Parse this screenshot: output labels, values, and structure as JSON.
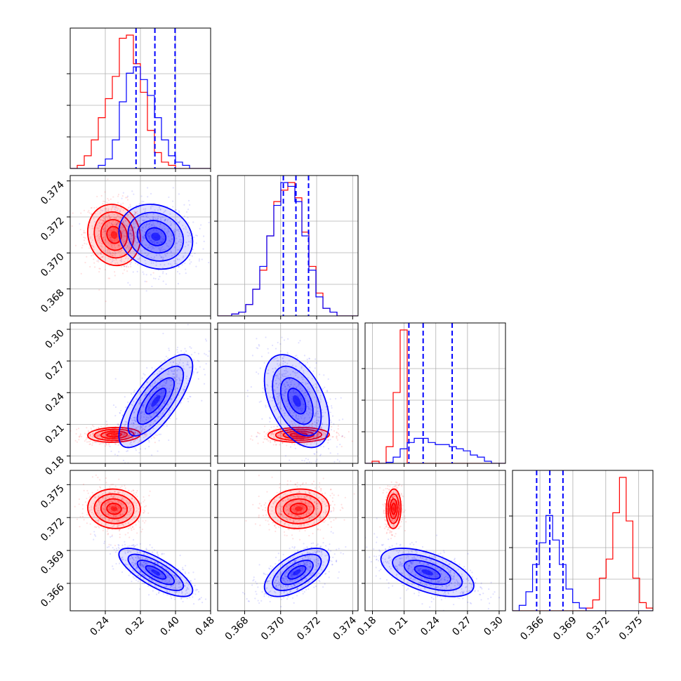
{
  "chart_data": {
    "type": "scatter",
    "title": "",
    "grid": true,
    "colors": {
      "red": "#ff0000",
      "blue": "#0000ff"
    },
    "params": [
      {
        "lim": [
          0.16,
          0.48
        ],
        "ticks": [
          "0.24",
          "0.32",
          "0.40",
          "0.48"
        ]
      },
      {
        "lim": [
          0.3665,
          0.3743
        ],
        "ticks": [
          "0.368",
          "0.370",
          "0.372",
          "0.374"
        ]
      },
      {
        "lim": [
          0.173,
          0.306
        ],
        "ticks": [
          "0.18",
          "0.21",
          "0.24",
          "0.27",
          "0.30"
        ]
      },
      {
        "lim": [
          0.3635,
          0.3763
        ],
        "ticks": [
          "0.366",
          "0.369",
          "0.372",
          "0.375"
        ]
      }
    ],
    "series": [
      {
        "color": "red",
        "mean": [
          0.26,
          0.371,
          0.2,
          0.3728
        ],
        "sd": [
          0.03,
          0.00085,
          0.0035,
          0.0009
        ],
        "corr": [
          [
            0,
            1,
            -0.1
          ],
          [
            0,
            2,
            0.1
          ],
          [
            0,
            3,
            -0.05
          ],
          [
            1,
            2,
            0.05
          ],
          [
            1,
            3,
            0.05
          ],
          [
            2,
            3,
            0.05
          ]
        ],
        "hist": [
          [
            0,
            1,
            4,
            9,
            16,
            22,
            29,
            41,
            42,
            33,
            24,
            12,
            5,
            2,
            1,
            0,
            0,
            0,
            0,
            0
          ],
          [
            0,
            0,
            0.5,
            1,
            3,
            7,
            12,
            21,
            30,
            33,
            35,
            31,
            22,
            13,
            6,
            2,
            1,
            0,
            0,
            0
          ],
          [
            0,
            1,
            0,
            8,
            34,
            64,
            0,
            0,
            0,
            0,
            0,
            0,
            0,
            0,
            0,
            0,
            0,
            0,
            0,
            0
          ],
          [
            0,
            0,
            0,
            0,
            0,
            0,
            0,
            0,
            0,
            0,
            0,
            1,
            4,
            12,
            19,
            36,
            49,
            33,
            12,
            3,
            1
          ]
        ]
      },
      {
        "color": "blue",
        "mean": [
          0.355,
          0.3709,
          0.232,
          0.367
        ],
        "sd": [
          0.042,
          0.0009,
          0.022,
          0.0011
        ],
        "corr": [
          [
            0,
            1,
            -0.15
          ],
          [
            0,
            2,
            0.75
          ],
          [
            0,
            3,
            -0.75
          ],
          [
            1,
            2,
            -0.45
          ],
          [
            1,
            3,
            0.6
          ],
          [
            2,
            3,
            -0.55
          ]
        ],
        "hist": [
          [
            0,
            0,
            0,
            0,
            1,
            3,
            9,
            21,
            30,
            32,
            28,
            23,
            16,
            9,
            4,
            2,
            1,
            0,
            0,
            0
          ],
          [
            0,
            0,
            0.5,
            1,
            3,
            7,
            13,
            21,
            29,
            35,
            34,
            30,
            21,
            12,
            5,
            2,
            1,
            0,
            0,
            0
          ],
          [
            0,
            0,
            0,
            0.5,
            3,
            7,
            10,
            12,
            12,
            10,
            9,
            9,
            8,
            7,
            6,
            4,
            3,
            1,
            0,
            0
          ],
          [
            0,
            2,
            7,
            17,
            25,
            35,
            26,
            17,
            8,
            3,
            1,
            0,
            0,
            0,
            0,
            0,
            0,
            0,
            0,
            0,
            0
          ]
        ]
      }
    ],
    "quantile_lines": [
      [
        0.31,
        0.353,
        0.399
      ],
      [
        0.37015,
        0.37085,
        0.37155
      ],
      [
        0.2145,
        0.228,
        0.2555
      ],
      [
        0.3657,
        0.3669,
        0.3681
      ]
    ]
  }
}
